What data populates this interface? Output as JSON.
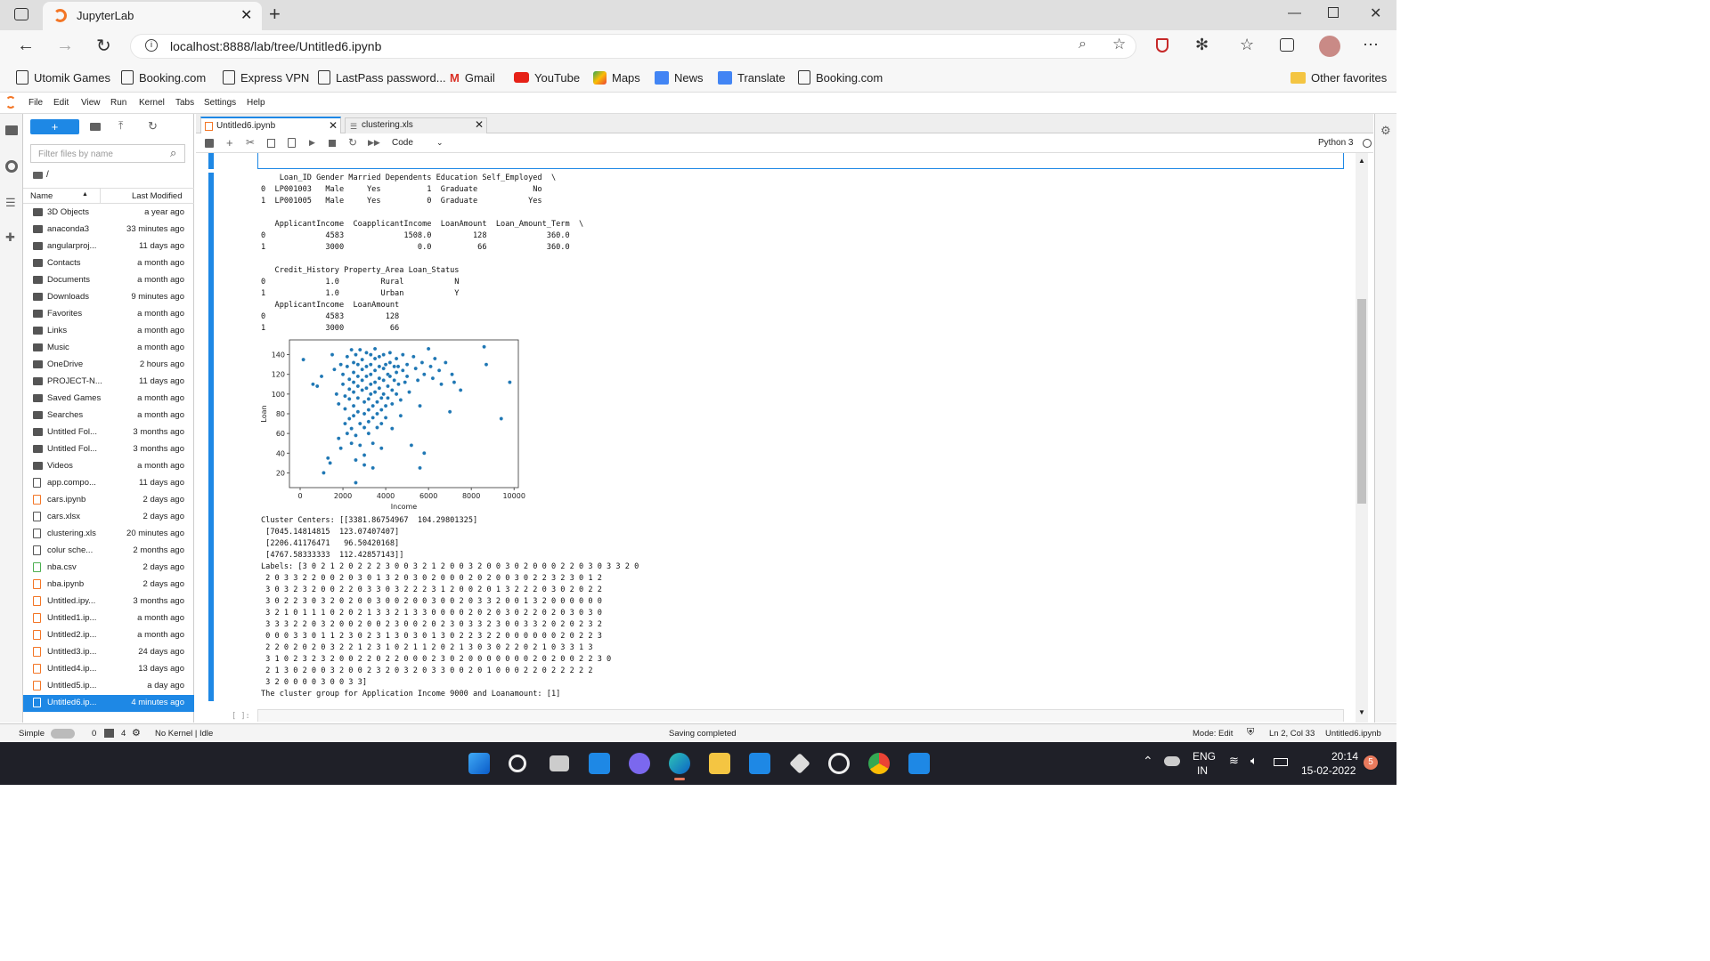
{
  "browser": {
    "tab_title": "JupyterLab",
    "url": "localhost:8888/lab/tree/Untitled6.ipynb",
    "favorites": [
      "Utomik Games",
      "Booking.com",
      "Express VPN",
      "LastPass password...",
      "Gmail",
      "YouTube",
      "Maps",
      "News",
      "Translate",
      "Booking.com"
    ],
    "other_favorites": "Other favorites"
  },
  "menu": [
    "File",
    "Edit",
    "View",
    "Run",
    "Kernel",
    "Tabs",
    "Settings",
    "Help"
  ],
  "filebrowser": {
    "filter_placeholder": "Filter files by name",
    "path": "/",
    "col_name": "Name",
    "col_modified": "Last Modified",
    "files": [
      {
        "name": "3D Objects",
        "modified": "a year ago",
        "type": "folder"
      },
      {
        "name": "anaconda3",
        "modified": "33 minutes ago",
        "type": "folder"
      },
      {
        "name": "angularproj...",
        "modified": "11 days ago",
        "type": "folder"
      },
      {
        "name": "Contacts",
        "modified": "a month ago",
        "type": "folder"
      },
      {
        "name": "Documents",
        "modified": "a month ago",
        "type": "folder"
      },
      {
        "name": "Downloads",
        "modified": "9 minutes ago",
        "type": "folder"
      },
      {
        "name": "Favorites",
        "modified": "a month ago",
        "type": "folder"
      },
      {
        "name": "Links",
        "modified": "a month ago",
        "type": "folder"
      },
      {
        "name": "Music",
        "modified": "a month ago",
        "type": "folder"
      },
      {
        "name": "OneDrive",
        "modified": "2 hours ago",
        "type": "folder"
      },
      {
        "name": "PROJECT-N...",
        "modified": "11 days ago",
        "type": "folder"
      },
      {
        "name": "Saved Games",
        "modified": "a month ago",
        "type": "folder"
      },
      {
        "name": "Searches",
        "modified": "a month ago",
        "type": "folder"
      },
      {
        "name": "Untitled Fol...",
        "modified": "3 months ago",
        "type": "folder"
      },
      {
        "name": "Untitled Fol...",
        "modified": "3 months ago",
        "type": "folder"
      },
      {
        "name": "Videos",
        "modified": "a month ago",
        "type": "folder"
      },
      {
        "name": "app.compo...",
        "modified": "11 days ago",
        "type": "file"
      },
      {
        "name": "cars.ipynb",
        "modified": "2 days ago",
        "type": "notebook"
      },
      {
        "name": "cars.xlsx",
        "modified": "2 days ago",
        "type": "file"
      },
      {
        "name": "clustering.xls",
        "modified": "20 minutes ago",
        "type": "file"
      },
      {
        "name": "colur sche...",
        "modified": "2 months ago",
        "type": "file"
      },
      {
        "name": "nba.csv",
        "modified": "2 days ago",
        "type": "csv"
      },
      {
        "name": "nba.ipynb",
        "modified": "2 days ago",
        "type": "notebook"
      },
      {
        "name": "Untitled.ipy...",
        "modified": "3 months ago",
        "type": "notebook"
      },
      {
        "name": "Untitled1.ip...",
        "modified": "a month ago",
        "type": "notebook"
      },
      {
        "name": "Untitled2.ip...",
        "modified": "a month ago",
        "type": "notebook"
      },
      {
        "name": "Untitled3.ip...",
        "modified": "24 days ago",
        "type": "notebook"
      },
      {
        "name": "Untitled4.ip...",
        "modified": "13 days ago",
        "type": "notebook"
      },
      {
        "name": "Untitled5.ip...",
        "modified": "a day ago",
        "type": "notebook"
      },
      {
        "name": "Untitled6.ip...",
        "modified": "4 minutes ago",
        "type": "notebook",
        "selected": true
      }
    ]
  },
  "doc_tabs": [
    {
      "label": "Untitled6.ipynb",
      "active": true
    },
    {
      "label": "clustering.xls",
      "active": false
    }
  ],
  "toolbar": {
    "cell_type": "Code",
    "kernel": "Python 3"
  },
  "output": {
    "df_lines": [
      "    Loan_ID Gender Married Dependents Education Self_Employed  \\",
      "0  LP001003   Male     Yes          1  Graduate            No",
      "1  LP001005   Male     Yes          0  Graduate           Yes",
      "",
      "   ApplicantIncome  CoapplicantIncome  LoanAmount  Loan_Amount_Term  \\",
      "0             4583             1508.0         128             360.0",
      "1             3000                0.0          66             360.0",
      "",
      "   Credit_History Property_Area Loan_Status",
      "0             1.0         Rural           N",
      "1             1.0         Urban           Y",
      "   ApplicantIncome  LoanAmount",
      "0             4583         128",
      "1             3000          66"
    ],
    "result_lines": [
      "Cluster Centers: [[3381.86754967  104.29801325]",
      " [7045.14814815  123.07407407]",
      " [2206.41176471   96.50420168]",
      " [4767.58333333  112.42857143]]",
      "Labels: [3 0 2 1 2 0 2 2 2 3 0 0 3 2 1 2 0 0 3 2 0 0 3 0 2 0 0 0 2 2 0 3 0 3 3 2 0",
      " 2 0 3 3 2 2 0 0 2 0 3 0 1 3 2 0 3 0 2 0 0 0 2 0 2 0 0 3 0 2 2 3 2 3 0 1 2",
      " 3 0 3 2 3 2 0 0 2 2 0 3 3 0 3 2 2 2 3 1 2 0 0 2 0 1 3 2 2 2 0 3 0 2 0 2 2",
      " 3 0 2 2 3 0 3 2 0 2 0 0 3 0 0 2 0 0 3 0 0 2 0 3 3 2 0 0 1 3 2 0 0 0 0 0 0",
      " 3 2 1 0 1 1 1 0 2 0 2 1 3 3 2 1 3 3 0 0 0 0 2 0 2 0 3 0 2 2 0 2 0 3 0 3 0",
      " 3 3 3 2 2 0 3 2 0 0 2 0 0 2 3 0 0 2 0 2 3 0 3 3 2 3 0 0 3 3 2 0 2 0 2 3 2",
      " 0 0 0 3 3 0 1 1 2 3 0 2 3 1 3 0 3 0 1 3 0 2 2 3 2 2 0 0 0 0 0 0 2 0 2 2 3",
      " 2 2 0 2 0 2 0 3 2 2 1 2 3 1 0 2 1 1 2 0 2 1 3 0 3 0 2 2 0 2 1 0 3 3 1 3",
      " 3 1 0 2 3 2 3 2 0 0 2 2 0 2 2 0 0 0 2 3 0 2 0 0 0 0 0 0 0 2 0 2 0 0 2 2 3 0",
      " 2 1 3 0 2 0 0 3 2 0 0 2 3 2 0 3 2 0 3 3 0 0 2 0 1 0 0 0 2 2 0 2 2 2 2 2",
      " 3 2 0 0 0 0 3 0 0 3 3]",
      "The cluster group for Application Income 9000 and Loanamount: [1]"
    ],
    "prompt_empty": "[ ]:"
  },
  "chart_data": {
    "type": "scatter",
    "xlabel": "Income",
    "ylabel": "Loan",
    "xlim": [
      -500,
      10200
    ],
    "ylim": [
      5,
      155
    ],
    "xticks": [
      "0",
      "2000",
      "4000",
      "6000",
      "8000",
      "10000"
    ],
    "yticks": [
      "20",
      "40",
      "60",
      "80",
      "100",
      "120",
      "140"
    ],
    "color": "#1f77b4",
    "points": [
      [
        150,
        135
      ],
      [
        600,
        110
      ],
      [
        800,
        108
      ],
      [
        1000,
        118
      ],
      [
        1100,
        20
      ],
      [
        1300,
        35
      ],
      [
        1400,
        30
      ],
      [
        1500,
        140
      ],
      [
        1600,
        125
      ],
      [
        1700,
        100
      ],
      [
        1800,
        90
      ],
      [
        1800,
        55
      ],
      [
        1900,
        45
      ],
      [
        1900,
        130
      ],
      [
        2000,
        120
      ],
      [
        2000,
        110
      ],
      [
        2100,
        98
      ],
      [
        2100,
        85
      ],
      [
        2100,
        70
      ],
      [
        2200,
        60
      ],
      [
        2200,
        138
      ],
      [
        2200,
        128
      ],
      [
        2300,
        115
      ],
      [
        2300,
        105
      ],
      [
        2300,
        95
      ],
      [
        2300,
        75
      ],
      [
        2400,
        65
      ],
      [
        2400,
        50
      ],
      [
        2400,
        145
      ],
      [
        2500,
        132
      ],
      [
        2500,
        122
      ],
      [
        2500,
        112
      ],
      [
        2500,
        102
      ],
      [
        2500,
        88
      ],
      [
        2500,
        78
      ],
      [
        2600,
        58
      ],
      [
        2600,
        10
      ],
      [
        2600,
        140
      ],
      [
        2700,
        130
      ],
      [
        2700,
        118
      ],
      [
        2700,
        108
      ],
      [
        2700,
        96
      ],
      [
        2700,
        82
      ],
      [
        2800,
        70
      ],
      [
        2800,
        48
      ],
      [
        2800,
        145
      ],
      [
        2900,
        135
      ],
      [
        2900,
        125
      ],
      [
        2900,
        114
      ],
      [
        2900,
        104
      ],
      [
        3000,
        92
      ],
      [
        3000,
        80
      ],
      [
        3000,
        66
      ],
      [
        3000,
        38
      ],
      [
        3000,
        28
      ],
      [
        3100,
        142
      ],
      [
        3100,
        128
      ],
      [
        3100,
        118
      ],
      [
        3100,
        106
      ],
      [
        3200,
        95
      ],
      [
        3200,
        84
      ],
      [
        3200,
        72
      ],
      [
        3200,
        60
      ],
      [
        3300,
        140
      ],
      [
        3300,
        130
      ],
      [
        3300,
        120
      ],
      [
        3300,
        110
      ],
      [
        3300,
        100
      ],
      [
        3400,
        88
      ],
      [
        3400,
        76
      ],
      [
        3400,
        50
      ],
      [
        3400,
        25
      ],
      [
        3500,
        146
      ],
      [
        3500,
        136
      ],
      [
        3500,
        124
      ],
      [
        3500,
        112
      ],
      [
        3500,
        102
      ],
      [
        3600,
        92
      ],
      [
        3600,
        80
      ],
      [
        3600,
        66
      ],
      [
        3700,
        138
      ],
      [
        3700,
        128
      ],
      [
        3700,
        116
      ],
      [
        3700,
        106
      ],
      [
        3800,
        96
      ],
      [
        3800,
        84
      ],
      [
        3800,
        70
      ],
      [
        3800,
        45
      ],
      [
        3900,
        140
      ],
      [
        3900,
        126
      ],
      [
        3900,
        114
      ],
      [
        3900,
        100
      ],
      [
        4000,
        88
      ],
      [
        4000,
        76
      ],
      [
        4000,
        130
      ],
      [
        4100,
        120
      ],
      [
        4100,
        108
      ],
      [
        4100,
        96
      ],
      [
        4200,
        142
      ],
      [
        4200,
        132
      ],
      [
        4200,
        118
      ],
      [
        4300,
        104
      ],
      [
        4300,
        90
      ],
      [
        4300,
        65
      ],
      [
        4400,
        128
      ],
      [
        4400,
        114
      ],
      [
        4500,
        136
      ],
      [
        4500,
        122
      ],
      [
        4500,
        100
      ],
      [
        4583,
        128
      ],
      [
        4600,
        110
      ],
      [
        4700,
        94
      ],
      [
        4700,
        78
      ],
      [
        4800,
        140
      ],
      [
        4800,
        124
      ],
      [
        4900,
        112
      ],
      [
        5000,
        130
      ],
      [
        5000,
        118
      ],
      [
        5100,
        102
      ],
      [
        5200,
        48
      ],
      [
        5300,
        138
      ],
      [
        5400,
        126
      ],
      [
        5500,
        114
      ],
      [
        5600,
        88
      ],
      [
        5600,
        25
      ],
      [
        5700,
        132
      ],
      [
        5800,
        120
      ],
      [
        5800,
        40
      ],
      [
        6000,
        146
      ],
      [
        6100,
        128
      ],
      [
        6200,
        116
      ],
      [
        6300,
        136
      ],
      [
        6500,
        124
      ],
      [
        6600,
        110
      ],
      [
        6800,
        132
      ],
      [
        7000,
        82
      ],
      [
        7100,
        120
      ],
      [
        7200,
        112
      ],
      [
        7500,
        104
      ],
      [
        8600,
        148
      ],
      [
        8700,
        130
      ],
      [
        9400,
        75
      ],
      [
        9800,
        112
      ],
      [
        3000,
        66
      ],
      [
        2600,
        33
      ]
    ]
  },
  "status": {
    "mode_label": "Simple",
    "count1": "0",
    "count2": "4",
    "kernel": "No Kernel | Idle",
    "saving": "Saving completed",
    "mode": "Mode: Edit",
    "position": "Ln 2, Col 33",
    "filename": "Untitled6.ipynb"
  },
  "taskbar": {
    "lang1": "ENG",
    "lang2": "IN",
    "time": "20:14",
    "date": "15-02-2022",
    "badge": "5"
  }
}
